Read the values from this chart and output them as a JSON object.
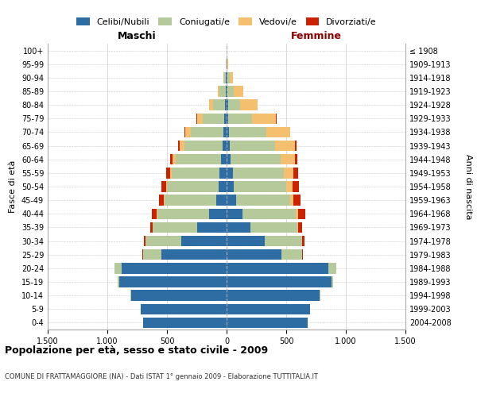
{
  "age_groups": [
    "0-4",
    "5-9",
    "10-14",
    "15-19",
    "20-24",
    "25-29",
    "30-34",
    "35-39",
    "40-44",
    "45-49",
    "50-54",
    "55-59",
    "60-64",
    "65-69",
    "70-74",
    "75-79",
    "80-84",
    "85-89",
    "90-94",
    "95-99",
    "100+"
  ],
  "birth_years": [
    "2004-2008",
    "1999-2003",
    "1994-1998",
    "1989-1993",
    "1984-1988",
    "1979-1983",
    "1974-1978",
    "1969-1973",
    "1964-1968",
    "1959-1963",
    "1954-1958",
    "1949-1953",
    "1944-1948",
    "1939-1943",
    "1934-1938",
    "1929-1933",
    "1924-1928",
    "1919-1923",
    "1914-1918",
    "1909-1913",
    "≤ 1908"
  ],
  "maschi": {
    "celibi": [
      700,
      720,
      800,
      900,
      880,
      550,
      380,
      250,
      150,
      90,
      70,
      60,
      50,
      35,
      30,
      20,
      15,
      10,
      5,
      2,
      0
    ],
    "coniugati": [
      1,
      2,
      5,
      15,
      60,
      150,
      300,
      370,
      430,
      430,
      430,
      400,
      380,
      320,
      270,
      180,
      100,
      50,
      20,
      5,
      2
    ],
    "vedovi": [
      0,
      0,
      0,
      0,
      0,
      1,
      2,
      3,
      5,
      5,
      10,
      15,
      25,
      40,
      50,
      50,
      30,
      15,
      5,
      1,
      0
    ],
    "divorziati": [
      0,
      0,
      0,
      1,
      2,
      5,
      10,
      20,
      40,
      40,
      35,
      30,
      20,
      10,
      5,
      2,
      1,
      0,
      0,
      0,
      0
    ]
  },
  "femmine": {
    "nubili": [
      680,
      700,
      780,
      880,
      850,
      460,
      320,
      200,
      130,
      80,
      60,
      50,
      35,
      25,
      20,
      15,
      10,
      8,
      5,
      2,
      0
    ],
    "coniugate": [
      1,
      2,
      5,
      15,
      70,
      170,
      310,
      390,
      450,
      450,
      440,
      430,
      420,
      380,
      310,
      200,
      100,
      50,
      20,
      5,
      2
    ],
    "vedove": [
      0,
      0,
      0,
      0,
      1,
      2,
      5,
      10,
      20,
      30,
      50,
      80,
      120,
      170,
      200,
      200,
      150,
      80,
      25,
      5,
      1
    ],
    "divorziate": [
      0,
      0,
      0,
      1,
      2,
      5,
      15,
      30,
      60,
      60,
      55,
      40,
      20,
      10,
      5,
      2,
      1,
      0,
      0,
      0,
      0
    ]
  },
  "colors": {
    "celibi": "#2e6da4",
    "coniugati": "#b5c99a",
    "vedovi": "#f4c06f",
    "divorziati": "#cc2200"
  },
  "xlim": 1500,
  "title_main": "Popolazione per età, sesso e stato civile - 2009",
  "title_sub": "COMUNE DI FRATTAMAGGIORE (NA) - Dati ISTAT 1° gennaio 2009 - Elaborazione TUTTITALIA.IT",
  "ylabel_left": "Fasce di età",
  "ylabel_right": "Anni di nascita",
  "xlabel_left": "Maschi",
  "xlabel_right": "Femmine"
}
